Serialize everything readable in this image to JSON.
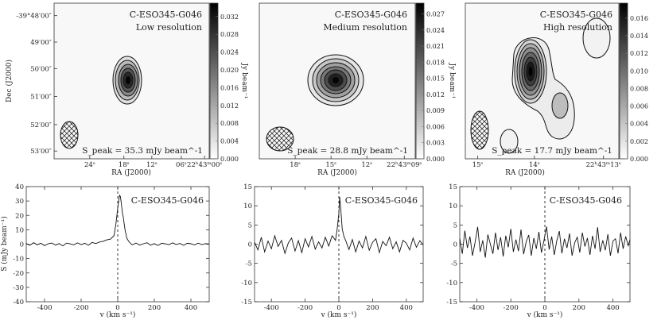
{
  "chart_data": [
    {
      "type": "heatmap",
      "source": "C-ESO345-G046",
      "resolution": "Low resolution",
      "peak_label": "S_peak = 35.3 mJy beam^-1",
      "peak_mjy": 35.3,
      "xlabel": "RA (J2000)",
      "ylabel": "Dec (J2000)",
      "x_ticks": [
        "24ˢ",
        "18ˢ",
        "12ˢ",
        "06ˢ",
        "22ʰ43ᵐ00ˢ"
      ],
      "y_ticks": [
        "-39°48′00″",
        "49′00″",
        "50′00″",
        "51′00″",
        "52′00″",
        "53′00″"
      ],
      "colorbar_label": "Jy beam⁻¹",
      "colorbar_range": [
        0,
        0.035
      ],
      "colorbar_ticks": [
        "0.000",
        "0.004",
        "0.008",
        "0.012",
        "0.016",
        "0.020",
        "0.024",
        "0.028",
        "0.032"
      ],
      "colormap": "gray_r"
    },
    {
      "type": "heatmap",
      "source": "C-ESO345-G046",
      "resolution": "Medium resolution",
      "peak_label": "S_peak = 28.8 mJy beam^-1",
      "peak_mjy": 28.8,
      "xlabel": "RA (J2000)",
      "x_ticks": [
        "18ˢ",
        "15ˢ",
        "12ˢ",
        "22ʰ43ᵐ09ˢ"
      ],
      "colorbar_label": "Jy beam⁻¹",
      "colorbar_range": [
        0,
        0.029
      ],
      "colorbar_ticks": [
        "0.000",
        "0.003",
        "0.006",
        "0.009",
        "0.012",
        "0.015",
        "0.018",
        "0.021",
        "0.024",
        "0.027"
      ],
      "colormap": "gray_r"
    },
    {
      "type": "heatmap",
      "source": "C-ESO345-G046",
      "resolution": "High resolution",
      "peak_label": "S_peak = 17.7 mJy beam^-1",
      "peak_mjy": 17.7,
      "xlabel": "RA (J2000)",
      "x_ticks": [
        "15ˢ",
        "14ˢ",
        "22ʰ43ᵐ13ˢ"
      ],
      "colorbar_label": "Jy beam⁻¹",
      "colorbar_range": [
        0,
        0.0177
      ],
      "colorbar_ticks": [
        "0.000",
        "0.002",
        "0.004",
        "0.006",
        "0.008",
        "0.010",
        "0.012",
        "0.014",
        "0.016"
      ],
      "colormap": "gray_r"
    },
    {
      "type": "line",
      "source": "C-ESO345-G046",
      "xlabel": "v (km s⁻¹)",
      "ylabel": "S (mJy beam⁻¹)",
      "xlim": [
        -500,
        500
      ],
      "ylim": [
        -40,
        40
      ],
      "x_ticks": [
        -400,
        -200,
        0,
        200,
        400
      ],
      "y_ticks": [
        -40,
        -30,
        -20,
        -10,
        0,
        10,
        20,
        30,
        40
      ],
      "vline": 0,
      "x": [
        -500,
        -480,
        -460,
        -440,
        -420,
        -400,
        -380,
        -360,
        -340,
        -320,
        -300,
        -280,
        -260,
        -240,
        -220,
        -200,
        -180,
        -160,
        -140,
        -120,
        -100,
        -80,
        -60,
        -40,
        -20,
        -10,
        0,
        5,
        10,
        15,
        20,
        25,
        30,
        40,
        50,
        60,
        70,
        80,
        100,
        120,
        140,
        160,
        180,
        200,
        220,
        240,
        260,
        280,
        300,
        320,
        340,
        360,
        380,
        400,
        420,
        440,
        460,
        480,
        500
      ],
      "y": [
        0.5,
        -0.8,
        1.0,
        -0.4,
        0.6,
        -1.0,
        0.3,
        0.8,
        -0.6,
        0.4,
        -1.2,
        0.7,
        0.2,
        -0.5,
        0.9,
        -0.3,
        0.6,
        -0.8,
        1.2,
        0.4,
        1.5,
        2.0,
        3.0,
        3.5,
        6.0,
        14.0,
        25.0,
        30.0,
        34.0,
        33.0,
        28.0,
        22.0,
        19.0,
        10.0,
        4.0,
        2.0,
        0.5,
        -0.5,
        0.8,
        -0.6,
        0.3,
        1.0,
        -0.7,
        0.4,
        -0.9,
        0.6,
        0.2,
        -0.4,
        0.9,
        -0.2,
        0.5,
        -0.8,
        0.6,
        0.3,
        -0.5,
        0.7,
        -0.3,
        0.4,
        0.1
      ]
    },
    {
      "type": "line",
      "source": "C-ESO345-G046",
      "xlabel": "v (km s⁻¹)",
      "xlim": [
        -500,
        500
      ],
      "ylim": [
        -15,
        15
      ],
      "x_ticks": [
        -400,
        -200,
        0,
        200,
        400
      ],
      "y_ticks": [
        -15,
        -10,
        -5,
        0,
        5,
        10,
        15
      ],
      "vline": 0,
      "x": [
        -500,
        -480,
        -460,
        -440,
        -420,
        -400,
        -380,
        -360,
        -340,
        -320,
        -300,
        -280,
        -260,
        -240,
        -220,
        -200,
        -180,
        -160,
        -140,
        -120,
        -100,
        -80,
        -60,
        -40,
        -20,
        -10,
        0,
        5,
        10,
        15,
        20,
        30,
        40,
        60,
        80,
        100,
        120,
        140,
        160,
        180,
        200,
        220,
        240,
        260,
        280,
        300,
        320,
        340,
        360,
        380,
        400,
        420,
        440,
        460,
        480,
        500
      ],
      "y": [
        0.5,
        -1.5,
        1.8,
        -2.0,
        0.8,
        -1.2,
        2.2,
        -0.6,
        1.0,
        -2.4,
        0.3,
        1.6,
        -1.8,
        0.9,
        -2.2,
        1.4,
        -0.7,
        2.0,
        -1.3,
        0.6,
        -1.0,
        1.8,
        -0.5,
        2.2,
        1.0,
        4.0,
        8.0,
        12.3,
        10.0,
        7.0,
        4.0,
        2.0,
        1.0,
        -1.4,
        1.2,
        -2.0,
        0.8,
        -1.0,
        2.0,
        -1.6,
        0.5,
        1.4,
        -2.2,
        0.7,
        -0.4,
        1.8,
        -1.2,
        0.6,
        -2.0,
        1.0,
        0.3,
        -1.5,
        1.6,
        -0.8,
        0.9,
        -0.2
      ]
    },
    {
      "type": "line",
      "source": "C-ESO345-G046",
      "xlabel": "v (km s⁻¹)",
      "xlim": [
        -500,
        500
      ],
      "ylim": [
        -15,
        15
      ],
      "x_ticks": [
        -400,
        -200,
        0,
        200,
        400
      ],
      "y_ticks": [
        -15,
        -10,
        -5,
        0,
        5,
        10,
        15
      ],
      "vline": 0,
      "x": [
        -500,
        -485,
        -470,
        -455,
        -440,
        -425,
        -410,
        -395,
        -380,
        -365,
        -350,
        -335,
        -320,
        -305,
        -290,
        -275,
        -260,
        -245,
        -230,
        -215,
        -200,
        -185,
        -170,
        -155,
        -140,
        -125,
        -110,
        -95,
        -80,
        -65,
        -50,
        -35,
        -20,
        -5,
        10,
        25,
        40,
        55,
        70,
        85,
        100,
        115,
        130,
        145,
        160,
        175,
        190,
        205,
        220,
        235,
        250,
        265,
        280,
        295,
        310,
        325,
        340,
        355,
        370,
        385,
        400,
        415,
        430,
        445,
        460,
        475,
        490,
        500
      ],
      "y": [
        1.5,
        -2.5,
        3.5,
        -1.0,
        2.0,
        -3.0,
        0.5,
        4.5,
        -2.0,
        1.0,
        -3.5,
        2.5,
        0.0,
        -2.5,
        3.0,
        -1.5,
        1.8,
        -3.2,
        2.2,
        -0.8,
        4.0,
        -2.0,
        1.2,
        -1.8,
        3.8,
        -2.6,
        0.6,
        2.4,
        -3.0,
        1.6,
        -1.2,
        3.2,
        -2.2,
        1.0,
        4.6,
        -1.4,
        2.0,
        -2.8,
        0.9,
        3.4,
        -2.4,
        1.4,
        -1.0,
        2.8,
        -3.0,
        0.4,
        1.8,
        -2.2,
        3.0,
        -0.6,
        1.6,
        -2.8,
        2.2,
        -1.2,
        4.4,
        -2.0,
        1.0,
        -1.6,
        2.6,
        -3.0,
        0.8,
        1.4,
        -2.4,
        3.0,
        -1.2,
        2.0,
        -0.4,
        1.2
      ]
    }
  ]
}
